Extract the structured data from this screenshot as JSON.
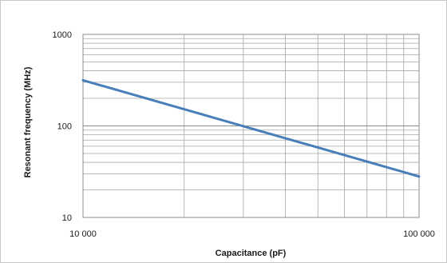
{
  "chart_data": {
    "type": "line",
    "title": "",
    "xlabel": "Capacitance  (pF)",
    "ylabel": "Resonant  frequency  (MHz)",
    "x_scale": "log",
    "y_scale": "log",
    "xlim": [
      10000,
      100000
    ],
    "ylim": [
      10,
      1000
    ],
    "x_ticks": [
      {
        "value": 10000,
        "label": "10 000"
      },
      {
        "value": 100000,
        "label": "100 000"
      }
    ],
    "y_ticks": [
      {
        "value": 10,
        "label": "10"
      },
      {
        "value": 100,
        "label": "100"
      },
      {
        "value": 1000,
        "label": "1000"
      }
    ],
    "grid": true,
    "legend": "none",
    "series": [
      {
        "color": "#4a7ebb",
        "x": [
          10000,
          100000
        ],
        "y": [
          315,
          28
        ]
      }
    ],
    "colors": {
      "line": "#4a7ebb",
      "grid": "#a6a6a6",
      "axis": "#8c8c8c"
    }
  }
}
